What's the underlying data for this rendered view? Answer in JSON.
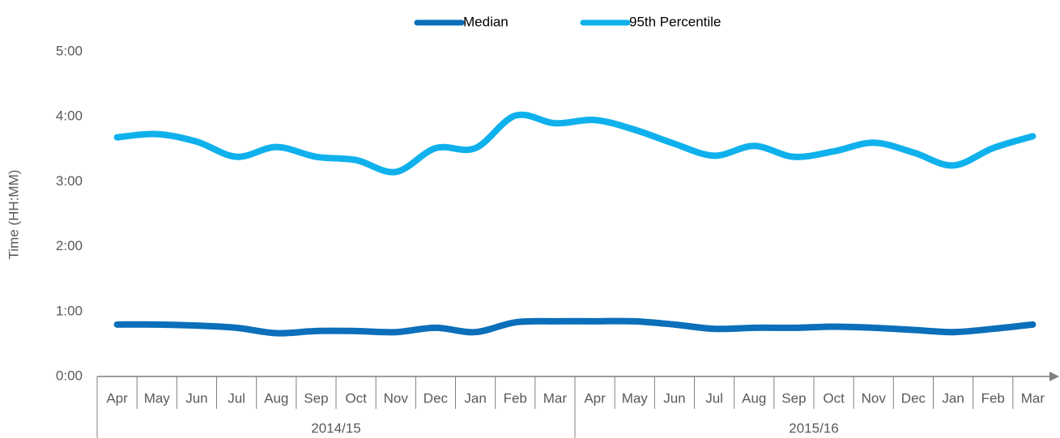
{
  "chart_data": {
    "type": "line",
    "y_label": "Time (HH:MM)",
    "categories": [
      "Apr",
      "May",
      "Jun",
      "Jul",
      "Aug",
      "Sep",
      "Oct",
      "Nov",
      "Dec",
      "Jan",
      "Feb",
      "Mar",
      "Apr",
      "May",
      "Jun",
      "Jul",
      "Aug",
      "Sep",
      "Oct",
      "Nov",
      "Dec",
      "Jan",
      "Feb",
      "Mar"
    ],
    "groups": [
      "2014/15",
      "2015/16"
    ],
    "series": [
      {
        "name": "Median",
        "color": "#0b6fba",
        "values": [
          48,
          48,
          47,
          45,
          40,
          42,
          42,
          41,
          45,
          41,
          50,
          51,
          51,
          51,
          48,
          44,
          45,
          45,
          46,
          45,
          43,
          41,
          44,
          48
        ]
      },
      {
        "name": "95th Percentile",
        "color": "#0fb1ec",
        "values": [
          221,
          224,
          217,
          203,
          212,
          203,
          200,
          189,
          211,
          211,
          241,
          234,
          237,
          228,
          215,
          204,
          213,
          203,
          208,
          216,
          207,
          195,
          211,
          222
        ]
      }
    ],
    "ylim": [
      0,
      300
    ],
    "yticks": [
      {
        "value": 0,
        "label": "0:00"
      },
      {
        "value": 60,
        "label": "1:00"
      },
      {
        "value": 120,
        "label": "2:00"
      },
      {
        "value": 180,
        "label": "3:00"
      },
      {
        "value": 240,
        "label": "4:00"
      },
      {
        "value": 300,
        "label": "5:00"
      }
    ],
    "legend": "top"
  }
}
